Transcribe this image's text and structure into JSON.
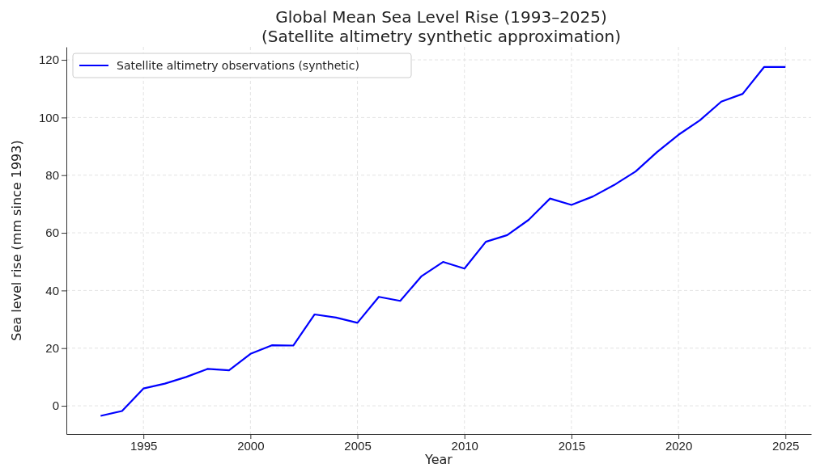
{
  "chart_data": {
    "type": "line",
    "title": "Global Mean Sea Level Rise (1993–2025)",
    "subtitle": "(Satellite altimetry synthetic approximation)",
    "xlabel": "Year",
    "ylabel": "Sea level rise (mm since 1993)",
    "x": [
      1993,
      1994,
      1995,
      1996,
      1997,
      1998,
      1999,
      2000,
      2001,
      2002,
      2003,
      2004,
      2005,
      2006,
      2007,
      2008,
      2009,
      2010,
      2011,
      2012,
      2013,
      2014,
      2015,
      2016,
      2017,
      2018,
      2019,
      2020,
      2021,
      2022,
      2023,
      2024,
      2025
    ],
    "series": [
      {
        "name": "Satellite altimetry observations (synthetic)",
        "color": "#0000ff",
        "values": [
          -3.5,
          -1.8,
          6,
          7.7,
          10,
          12.8,
          12.3,
          18,
          21,
          20.9,
          31.7,
          30.6,
          28.8,
          37.8,
          36.4,
          45,
          49.9,
          47.6,
          56.9,
          59.2,
          64.5,
          71.9,
          69.7,
          72.6,
          76.6,
          81.3,
          88,
          94,
          99,
          105.5,
          108.2,
          117.5,
          117.5
        ]
      }
    ],
    "xlim": [
      1991.4,
      2026.2
    ],
    "xticks": [
      1995,
      2000,
      2005,
      2010,
      2015,
      2020,
      2025
    ],
    "ylim": [
      -9.8,
      124.5
    ],
    "yticks": [
      0,
      20,
      40,
      60,
      80,
      100,
      120
    ],
    "grid": true,
    "legend": "top left",
    "marker": "none",
    "line_style": "solid"
  }
}
